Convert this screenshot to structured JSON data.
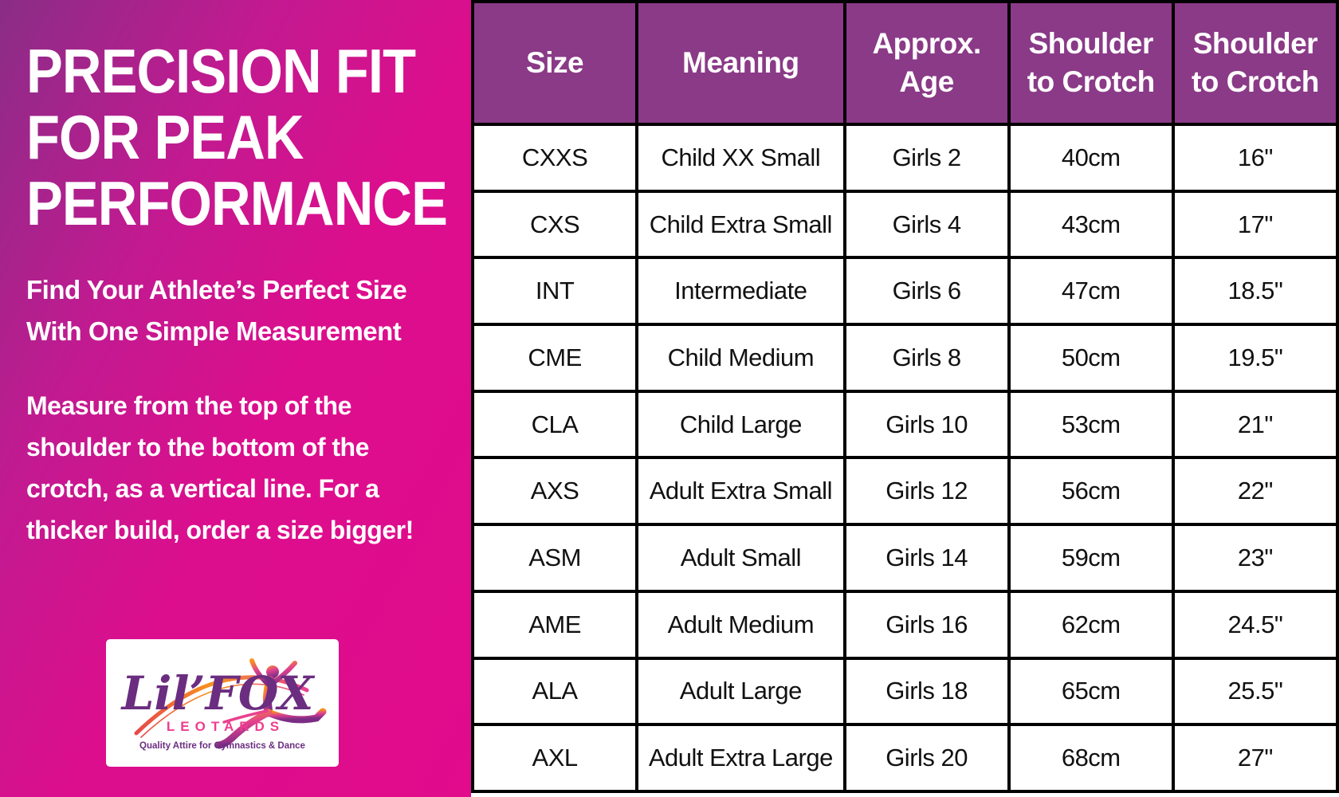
{
  "left_panel": {
    "title_lines": [
      "PRECISION FIT",
      "FOR PEAK",
      "PERFORMANCE"
    ],
    "subtitle_lines": [
      "Find Your Athlete’s Perfect Size",
      "With One Simple Measurement"
    ],
    "body_lines": [
      "Measure from the top of the",
      "shoulder to the bottom of the",
      "crotch, as a vertical line. For a",
      "thicker build, order a size bigger!"
    ],
    "logo": {
      "brand": "Lil’FOX",
      "sub_brand": "LEOTARDS",
      "tagline": "Quality Attire for Gymnastics & Dance"
    }
  },
  "table": {
    "headers": [
      "Size",
      "Meaning",
      "Approx. Age",
      "Shoulder to Crotch",
      "Shoulder to Crotch"
    ],
    "rows": [
      [
        "CXXS",
        "Child XX Small",
        "Girls 2",
        "40cm",
        "16\""
      ],
      [
        "CXS",
        "Child Extra Small",
        "Girls 4",
        "43cm",
        "17\""
      ],
      [
        "INT",
        "Intermediate",
        "Girls 6",
        "47cm",
        "18.5\""
      ],
      [
        "CME",
        "Child Medium",
        "Girls 8",
        "50cm",
        "19.5\""
      ],
      [
        "CLA",
        "Child Large",
        "Girls 10",
        "53cm",
        "21\""
      ],
      [
        "AXS",
        "Adult Extra Small",
        "Girls 12",
        "56cm",
        "22\""
      ],
      [
        "ASM",
        "Adult Small",
        "Girls 14",
        "59cm",
        "23\""
      ],
      [
        "AME",
        "Adult Medium",
        "Girls 16",
        "62cm",
        "24.5\""
      ],
      [
        "ALA",
        "Adult Large",
        "Girls 18",
        "65cm",
        "25.5\""
      ],
      [
        "AXL",
        "Adult Extra Large",
        "Girls 20",
        "68cm",
        "27\""
      ]
    ]
  },
  "colors": {
    "header_purple": "#8a3a87",
    "panel_gradient_start": "#8a2d87",
    "panel_pink": "#e10b8c",
    "table_border": "#000000",
    "logo_purple": "#6b2d80",
    "logo_pink": "#ee3d8f",
    "logo_orange": "#f7941d"
  }
}
